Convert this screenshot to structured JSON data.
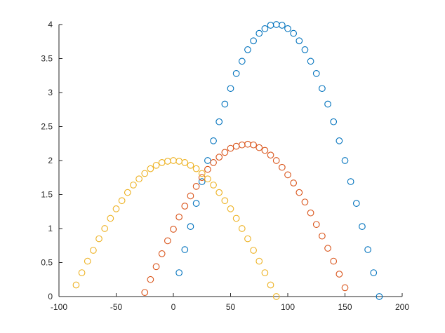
{
  "chart_data": {
    "type": "scatter",
    "title": "",
    "xlabel": "",
    "ylabel": "",
    "xlim": [
      -100,
      200
    ],
    "ylim": [
      0,
      4
    ],
    "xticks": [
      -100,
      -50,
      0,
      50,
      100,
      150,
      200
    ],
    "yticks": [
      0,
      0.5,
      1,
      1.5,
      2,
      2.5,
      3,
      3.5,
      4
    ],
    "xtick_labels": [
      "-100",
      "-50",
      "0",
      "50",
      "100",
      "150",
      "200"
    ],
    "ytick_labels": [
      "0",
      "0.5",
      "1",
      "1.5",
      "2",
      "2.5",
      "3",
      "3.5",
      "4"
    ],
    "grid": false,
    "legend": "none",
    "marker": "circle-open",
    "series": [
      {
        "color": "#0072BD",
        "x": [
          5,
          10,
          15,
          20,
          25,
          30,
          35,
          40,
          45,
          50,
          55,
          60,
          65,
          70,
          75,
          80,
          85,
          90,
          95,
          100,
          105,
          110,
          115,
          120,
          125,
          130,
          135,
          140,
          145,
          150,
          155,
          160,
          165,
          170,
          175,
          180
        ],
        "y": [
          0.35,
          0.69,
          1.03,
          1.37,
          1.69,
          2.0,
          2.29,
          2.57,
          2.83,
          3.06,
          3.28,
          3.46,
          3.63,
          3.76,
          3.87,
          3.94,
          3.99,
          4.0,
          3.99,
          3.94,
          3.87,
          3.76,
          3.63,
          3.46,
          3.28,
          3.06,
          2.83,
          2.57,
          2.29,
          2.0,
          1.69,
          1.37,
          1.03,
          0.69,
          0.35,
          0.0
        ]
      },
      {
        "color": "#D95319",
        "x": [
          -25,
          -20,
          -15,
          -10,
          -5,
          0,
          5,
          10,
          15,
          20,
          25,
          30,
          35,
          40,
          45,
          50,
          55,
          60,
          65,
          70,
          75,
          80,
          85,
          90,
          95,
          100,
          105,
          110,
          115,
          120,
          125,
          130,
          135,
          140,
          145,
          150
        ],
        "y": [
          0.06,
          0.25,
          0.44,
          0.63,
          0.82,
          0.99,
          1.17,
          1.33,
          1.48,
          1.62,
          1.75,
          1.87,
          1.97,
          2.05,
          2.12,
          2.18,
          2.21,
          2.23,
          2.24,
          2.23,
          2.19,
          2.15,
          2.08,
          2.0,
          1.9,
          1.79,
          1.67,
          1.53,
          1.39,
          1.23,
          1.06,
          0.89,
          0.71,
          0.52,
          0.33,
          0.13
        ]
      },
      {
        "color": "#EDB120",
        "x": [
          -85,
          -80,
          -75,
          -70,
          -65,
          -60,
          -55,
          -50,
          -45,
          -40,
          -35,
          -30,
          -25,
          -20,
          -15,
          -10,
          -5,
          0,
          5,
          10,
          15,
          20,
          25,
          30,
          35,
          40,
          45,
          50,
          55,
          60,
          65,
          70,
          75,
          80,
          85,
          90
        ],
        "y": [
          0.17,
          0.35,
          0.52,
          0.68,
          0.85,
          1.0,
          1.15,
          1.29,
          1.41,
          1.53,
          1.64,
          1.73,
          1.81,
          1.88,
          1.93,
          1.97,
          1.99,
          2.0,
          1.99,
          1.97,
          1.93,
          1.88,
          1.81,
          1.73,
          1.64,
          1.53,
          1.41,
          1.29,
          1.15,
          1.0,
          0.85,
          0.68,
          0.52,
          0.35,
          0.17,
          0.0
        ]
      }
    ]
  }
}
